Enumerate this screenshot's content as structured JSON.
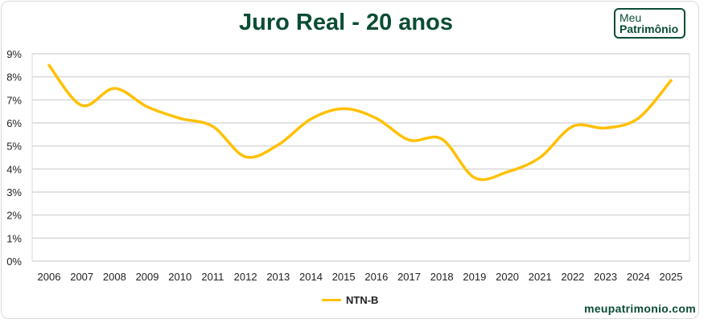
{
  "chart_data": {
    "type": "line",
    "title": "Juro Real - 20 anos",
    "xlabel": "",
    "ylabel": "",
    "categories": [
      "2006",
      "2007",
      "2008",
      "2009",
      "2010",
      "2011",
      "2012",
      "2013",
      "2014",
      "2015",
      "2016",
      "2017",
      "2018",
      "2019",
      "2020",
      "2021",
      "2022",
      "2023",
      "2024",
      "2025"
    ],
    "series": [
      {
        "name": "NTN-B",
        "color": "#ffc000",
        "smooth": true,
        "values": [
          8.5,
          6.76,
          7.5,
          6.7,
          6.2,
          5.85,
          4.53,
          5.05,
          6.17,
          6.62,
          6.2,
          5.26,
          5.3,
          3.62,
          3.87,
          4.5,
          5.85,
          5.78,
          6.2,
          7.84
        ]
      }
    ],
    "ylim": [
      0,
      9
    ],
    "yticks": [
      "0%",
      "1%",
      "2%",
      "3%",
      "4%",
      "5%",
      "6%",
      "7%",
      "8%",
      "9%"
    ],
    "grid": true,
    "legend": "bottom"
  },
  "logo": {
    "line1": "Meu",
    "line2": "Patrimônio"
  },
  "footer": {
    "site": "meupatrimonio.com"
  },
  "colors": {
    "title": "#0b4d34",
    "line": "#ffc000",
    "grid": "#d9d9d9"
  }
}
